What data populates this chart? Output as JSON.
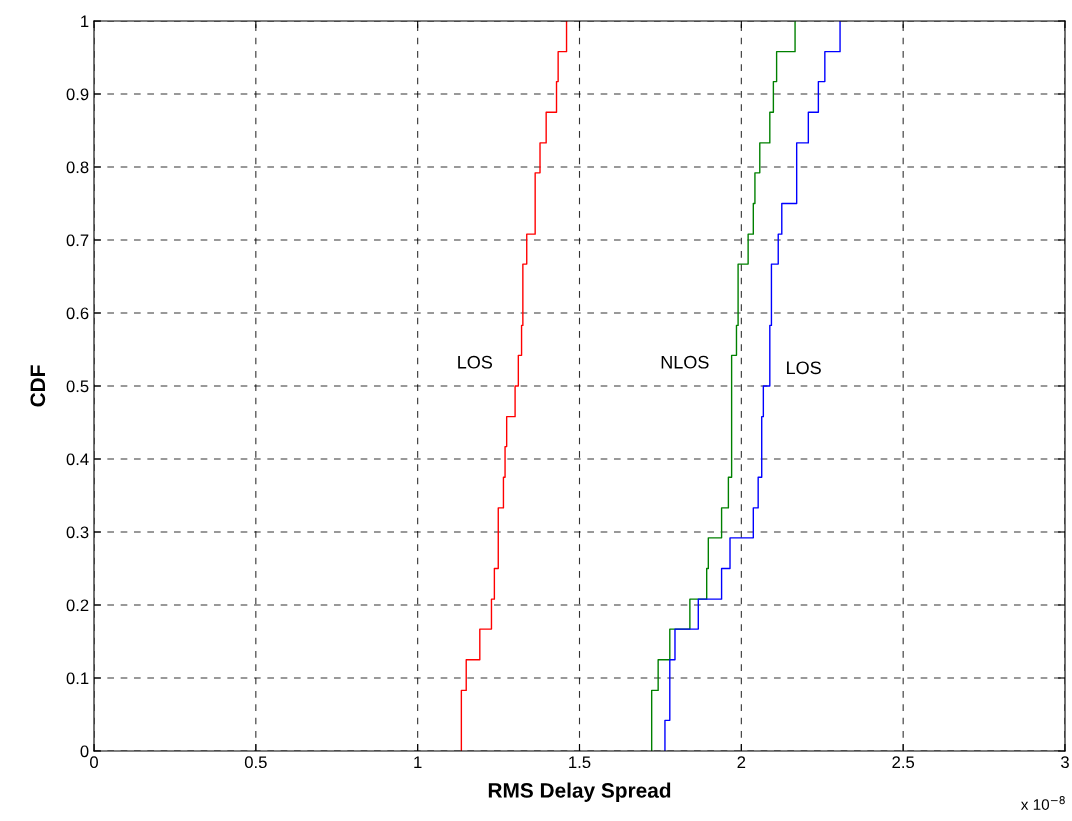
{
  "chart_data": {
    "type": "step",
    "xlabel": "RMS Delay Spread",
    "ylabel": "CDF",
    "xlim": [
      0,
      3
    ],
    "xticks": [
      0,
      0.5,
      1,
      1.5,
      2,
      2.5,
      3
    ],
    "ylim": [
      0,
      1
    ],
    "yticks": [
      0,
      0.1,
      0.2,
      0.3,
      0.4,
      0.5,
      0.6,
      0.7,
      0.8,
      0.9,
      1
    ],
    "grid": true,
    "line_style": "solid",
    "series": [
      {
        "name": "LOS",
        "color": "#ff0000",
        "x": [
          1.135,
          1.135,
          1.15,
          1.192,
          1.228,
          1.237,
          1.249,
          1.265,
          1.27,
          1.275,
          1.301,
          1.311,
          1.321,
          1.325,
          1.337,
          1.363,
          1.378,
          1.397,
          1.429,
          1.434,
          1.46
        ],
        "values": [
          0,
          0.083,
          0.125,
          0.167,
          0.208,
          0.25,
          0.333,
          0.375,
          0.417,
          0.458,
          0.5,
          0.542,
          0.583,
          0.667,
          0.708,
          0.792,
          0.833,
          0.875,
          0.917,
          0.958,
          1
        ]
      },
      {
        "name": "NLOS",
        "color": "#008000",
        "x": [
          1.723,
          1.723,
          1.743,
          1.779,
          1.841,
          1.893,
          1.898,
          1.939,
          1.96,
          1.97,
          1.985,
          1.99,
          2.021,
          2.037,
          2.042,
          2.057,
          2.088,
          2.099,
          2.109,
          2.166
        ],
        "values": [
          0,
          0.083,
          0.125,
          0.167,
          0.208,
          0.25,
          0.292,
          0.333,
          0.375,
          0.542,
          0.583,
          0.667,
          0.708,
          0.75,
          0.792,
          0.833,
          0.875,
          0.917,
          0.958,
          1
        ]
      },
      {
        "name": "LOS",
        "color": "#0000ff",
        "x": [
          1.764,
          1.764,
          1.779,
          1.795,
          1.867,
          1.939,
          1.965,
          2.037,
          2.052,
          2.063,
          2.068,
          2.088,
          2.093,
          2.114,
          2.125,
          2.171,
          2.207,
          2.238,
          2.258,
          2.305
        ],
        "values": [
          0,
          0.042,
          0.125,
          0.167,
          0.208,
          0.25,
          0.292,
          0.333,
          0.375,
          0.458,
          0.5,
          0.583,
          0.667,
          0.708,
          0.75,
          0.833,
          0.875,
          0.917,
          0.958,
          1
        ]
      }
    ],
    "annotations": [
      "x 10$^{−8}$"
    ]
  }
}
